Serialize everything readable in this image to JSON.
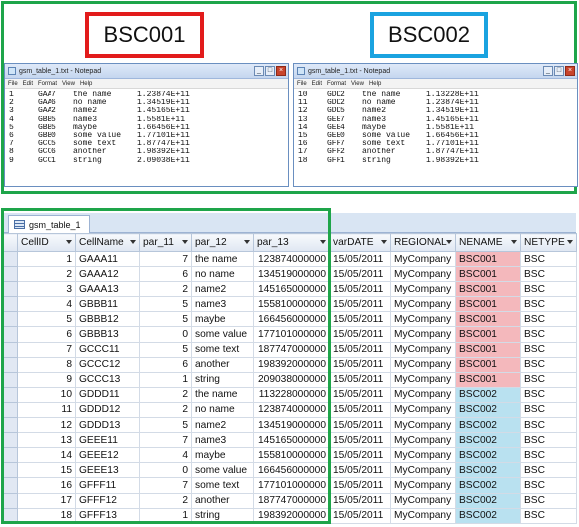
{
  "top": {
    "bsc_left": "BSC001",
    "bsc_right": "BSC002",
    "notepad_left": {
      "title": "gsm_table_1.txt - Notepad",
      "menu": [
        "File",
        "Edit",
        "Format",
        "View",
        "Help"
      ],
      "rows": [
        [
          "1",
          "GAAA11",
          "7",
          "the name",
          "1.23874E+11"
        ],
        [
          "2",
          "GAAA12",
          "6",
          "no name",
          "1.34519E+11"
        ],
        [
          "3",
          "GAAA13",
          "2",
          "name2",
          "1.45165E+11"
        ],
        [
          "4",
          "GBBB11",
          "5",
          "name3",
          "1.5581E+11"
        ],
        [
          "5",
          "GBBB12",
          "5",
          "maybe",
          "1.66456E+11"
        ],
        [
          "6",
          "GBBB13",
          "0",
          "some value",
          "1.77101E+11"
        ],
        [
          "7",
          "GCCC11",
          "5",
          "some text",
          "1.87747E+11"
        ],
        [
          "8",
          "GCCC12",
          "6",
          "another",
          "1.98392E+11"
        ],
        [
          "9",
          "GCCC13",
          "1",
          "string",
          "2.09038E+11"
        ]
      ]
    },
    "notepad_right": {
      "title": "gsm_table_1.txt - Notepad",
      "menu": [
        "File",
        "Edit",
        "Format",
        "View",
        "Help"
      ],
      "rows": [
        [
          "10",
          "GDDD11",
          "2",
          "the name",
          "1.13228E+11"
        ],
        [
          "11",
          "GDDD12",
          "2",
          "no name",
          "1.23874E+11"
        ],
        [
          "12",
          "GDDD13",
          "5",
          "name2",
          "1.34519E+11"
        ],
        [
          "13",
          "GEEE11",
          "7",
          "name3",
          "1.45165E+11"
        ],
        [
          "14",
          "GEEE12",
          "4",
          "maybe",
          "1.5581E+11"
        ],
        [
          "15",
          "GEEE13",
          "0",
          "some value",
          "1.66456E+11"
        ],
        [
          "16",
          "GFFF11",
          "7",
          "some text",
          "1.77101E+11"
        ],
        [
          "17",
          "GFFF12",
          "2",
          "another",
          "1.87747E+11"
        ],
        [
          "18",
          "GFFF13",
          "1",
          "string",
          "1.98392E+11"
        ]
      ]
    }
  },
  "table": {
    "tab_label": "gsm_table_1",
    "columns": [
      "CellID",
      "CellName",
      "par_11",
      "par_12",
      "par_13",
      "varDATE",
      "REGIONAL",
      "NENAME",
      "NETYPE"
    ],
    "rows": [
      [
        "1",
        "GAAA11",
        "7",
        "the name",
        "123874000000",
        "15/05/2011",
        "MyCompany",
        "BSC001",
        "BSC"
      ],
      [
        "2",
        "GAAA12",
        "6",
        "no name",
        "134519000000",
        "15/05/2011",
        "MyCompany",
        "BSC001",
        "BSC"
      ],
      [
        "3",
        "GAAA13",
        "2",
        "name2",
        "145165000000",
        "15/05/2011",
        "MyCompany",
        "BSC001",
        "BSC"
      ],
      [
        "4",
        "GBBB11",
        "5",
        "name3",
        "155810000000",
        "15/05/2011",
        "MyCompany",
        "BSC001",
        "BSC"
      ],
      [
        "5",
        "GBBB12",
        "5",
        "maybe",
        "166456000000",
        "15/05/2011",
        "MyCompany",
        "BSC001",
        "BSC"
      ],
      [
        "6",
        "GBBB13",
        "0",
        "some value",
        "177101000000",
        "15/05/2011",
        "MyCompany",
        "BSC001",
        "BSC"
      ],
      [
        "7",
        "GCCC11",
        "5",
        "some text",
        "187747000000",
        "15/05/2011",
        "MyCompany",
        "BSC001",
        "BSC"
      ],
      [
        "8",
        "GCCC12",
        "6",
        "another",
        "198392000000",
        "15/05/2011",
        "MyCompany",
        "BSC001",
        "BSC"
      ],
      [
        "9",
        "GCCC13",
        "1",
        "string",
        "209038000000",
        "15/05/2011",
        "MyCompany",
        "BSC001",
        "BSC"
      ],
      [
        "10",
        "GDDD11",
        "2",
        "the name",
        "113228000000",
        "15/05/2011",
        "MyCompany",
        "BSC002",
        "BSC"
      ],
      [
        "11",
        "GDDD12",
        "2",
        "no name",
        "123874000000",
        "15/05/2011",
        "MyCompany",
        "BSC002",
        "BSC"
      ],
      [
        "12",
        "GDDD13",
        "5",
        "name2",
        "134519000000",
        "15/05/2011",
        "MyCompany",
        "BSC002",
        "BSC"
      ],
      [
        "13",
        "GEEE11",
        "7",
        "name3",
        "145165000000",
        "15/05/2011",
        "MyCompany",
        "BSC002",
        "BSC"
      ],
      [
        "14",
        "GEEE12",
        "4",
        "maybe",
        "155810000000",
        "15/05/2011",
        "MyCompany",
        "BSC002",
        "BSC"
      ],
      [
        "15",
        "GEEE13",
        "0",
        "some value",
        "166456000000",
        "15/05/2011",
        "MyCompany",
        "BSC002",
        "BSC"
      ],
      [
        "16",
        "GFFF11",
        "7",
        "some text",
        "177101000000",
        "15/05/2011",
        "MyCompany",
        "BSC002",
        "BSC"
      ],
      [
        "17",
        "GFFF12",
        "2",
        "another",
        "187747000000",
        "15/05/2011",
        "MyCompany",
        "BSC002",
        "BSC"
      ],
      [
        "18",
        "GFFF13",
        "1",
        "string",
        "198392000000",
        "15/05/2011",
        "MyCompany",
        "BSC002",
        "BSC"
      ]
    ]
  },
  "colors": {
    "frame_green": "#1ea54a",
    "bsc001_red": "#e21b1b",
    "bsc002_blue": "#1aa3e0",
    "bsc001_cell": "#f4b8bc",
    "bsc002_cell": "#b9e1f0"
  }
}
